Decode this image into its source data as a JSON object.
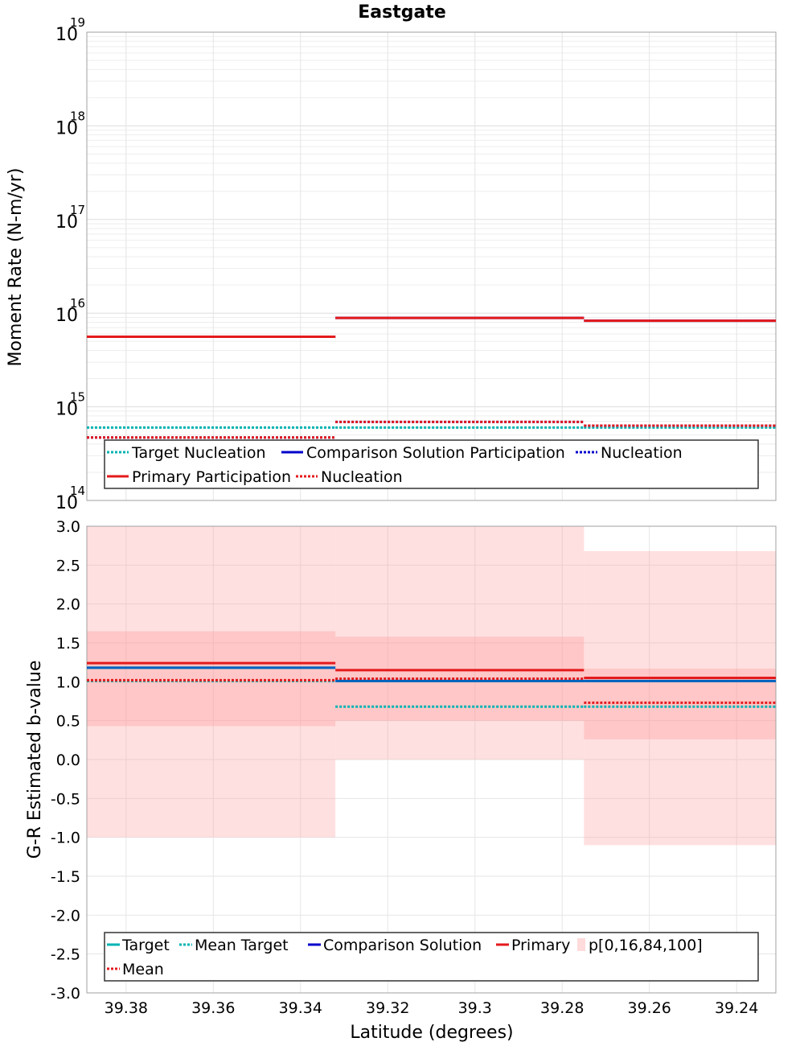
{
  "title": "Eastgate",
  "chart_data": [
    {
      "type": "line",
      "title": "Eastgate",
      "xlabel": "Latitude (degrees)",
      "ylabel": "Moment Rate (N-m/yr)",
      "yscale": "log",
      "ylim": [
        100000000000000.0,
        1e+19
      ],
      "xlim": [
        39.389,
        39.231
      ],
      "x_reversed": true,
      "ytick_bases": [
        "10",
        "10",
        "10",
        "10",
        "10",
        "10"
      ],
      "ytick_exponents": [
        "14",
        "15",
        "16",
        "17",
        "18",
        "19"
      ],
      "ytick_values": [
        100000000000000.0,
        1000000000000000.0,
        1e+16,
        1e+17,
        1e+18,
        1e+19
      ],
      "x_segments": [
        [
          39.389,
          39.332
        ],
        [
          39.332,
          39.275
        ],
        [
          39.275,
          39.231
        ]
      ],
      "grid": true,
      "legend_position": "bottom",
      "series": [
        {
          "name": "Target Nucleation",
          "color": "#00b3b3",
          "dash": "dotted",
          "values": [
            600000000000000.0,
            600000000000000.0,
            600000000000000.0
          ]
        },
        {
          "name": "Comparison Solution Participation",
          "color": "#0000cc",
          "dash": "solid",
          "values": [
            5600000000000000.0,
            8900000000000000.0,
            8300000000000000.0
          ]
        },
        {
          "name": "Nucleation",
          "color": "#0000cc",
          "dash": "dotted",
          "values": [
            470000000000000.0,
            690000000000000.0,
            630000000000000.0
          ]
        },
        {
          "name": "Primary Participation",
          "color": "#e41a1c",
          "dash": "solid",
          "values": [
            5600000000000000.0,
            8900000000000000.0,
            8300000000000000.0
          ]
        },
        {
          "name": "Nucleation",
          "color": "#e41a1c",
          "dash": "dotted",
          "values": [
            470000000000000.0,
            690000000000000.0,
            630000000000000.0
          ]
        }
      ]
    },
    {
      "type": "line",
      "xlabel": "Latitude (degrees)",
      "ylabel": "G-R Estimated b-value",
      "ylim": [
        -3.0,
        3.0
      ],
      "xlim": [
        39.389,
        39.231
      ],
      "x_reversed": true,
      "xticks": [
        "39.38",
        "39.36",
        "39.34",
        "39.32",
        "39.3",
        "39.28",
        "39.26",
        "39.24"
      ],
      "xtick_values": [
        39.38,
        39.36,
        39.34,
        39.32,
        39.3,
        39.28,
        39.26,
        39.24
      ],
      "yticks": [
        "3.0",
        "2.5",
        "2.0",
        "1.5",
        "1.0",
        "0.5",
        "0.0",
        "-0.5",
        "-1.0",
        "-1.5",
        "-2.0",
        "-2.5",
        "-3.0"
      ],
      "ytick_values": [
        3.0,
        2.5,
        2.0,
        1.5,
        1.0,
        0.5,
        0.0,
        -0.5,
        -1.0,
        -1.5,
        -2.0,
        -2.5,
        -3.0
      ],
      "x_segments": [
        [
          39.389,
          39.332
        ],
        [
          39.332,
          39.275
        ],
        [
          39.275,
          39.231
        ]
      ],
      "grid": true,
      "legend_position": "bottom",
      "bands": {
        "name": "p[0,16,84,100]",
        "color": "#ff9999",
        "p0": [
          -1.0,
          0.0,
          -1.1
        ],
        "p16": [
          0.43,
          0.5,
          0.26
        ],
        "p84": [
          1.65,
          1.58,
          1.17
        ],
        "p100": [
          3.0,
          3.0,
          2.68
        ]
      },
      "series": [
        {
          "name": "Target",
          "color": "#00b3b3",
          "dash": "solid",
          "values": [
            1.18,
            1.01,
            1.01
          ]
        },
        {
          "name": "Mean Target",
          "color": "#00b3b3",
          "dash": "dotted",
          "values": [
            1.01,
            0.68,
            0.68
          ]
        },
        {
          "name": "Comparison Solution",
          "color": "#0000cc",
          "dash": "solid",
          "values": [
            1.18,
            1.01,
            1.01
          ]
        },
        {
          "name": "Primary",
          "color": "#e41a1c",
          "dash": "solid",
          "values": [
            1.24,
            1.15,
            1.05
          ]
        },
        {
          "name": "Mean",
          "color": "#e41a1c",
          "dash": "dotted",
          "values": [
            1.02,
            1.04,
            0.73
          ]
        }
      ]
    }
  ]
}
